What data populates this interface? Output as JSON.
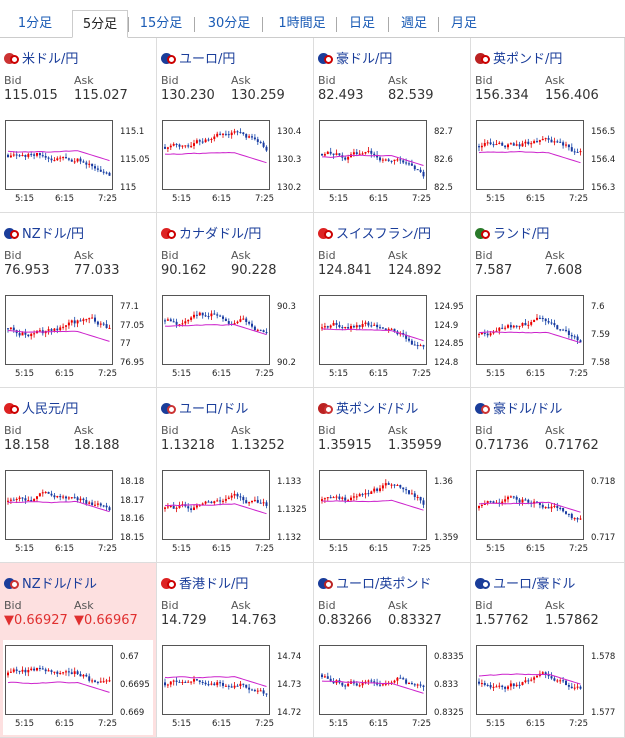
{
  "tabs": [
    {
      "label": "1分足",
      "active": false
    },
    {
      "label": "5分足",
      "active": true
    },
    {
      "label": "15分足",
      "active": false
    },
    {
      "label": "30分足",
      "active": false
    },
    {
      "label": "1時間足",
      "active": false
    },
    {
      "label": "日足",
      "active": false
    },
    {
      "label": "週足",
      "active": false
    },
    {
      "label": "月足",
      "active": false
    }
  ],
  "bid_label": "Bid",
  "ask_label": "Ask",
  "x_ticks": [
    "5:15",
    "6:15",
    "7:25"
  ],
  "pairs": [
    {
      "name": "米ドル/円",
      "bid": "115.015",
      "ask": "115.027",
      "flag": [
        "#c33",
        "#c00"
      ],
      "y_ticks": [
        "115.1",
        "115.05",
        "115"
      ],
      "down": false
    },
    {
      "name": "ユーロ/円",
      "bid": "130.230",
      "ask": "130.259",
      "flag": [
        "#1a3d9a",
        "#c00"
      ],
      "y_ticks": [
        "130.4",
        "130.3",
        "130.2"
      ],
      "down": false
    },
    {
      "name": "豪ドル/円",
      "bid": "82.493",
      "ask": "82.539",
      "flag": [
        "#1a3d9a",
        "#c00"
      ],
      "y_ticks": [
        "82.7",
        "82.6",
        "82.5"
      ],
      "down": false
    },
    {
      "name": "英ポンド/円",
      "bid": "156.334",
      "ask": "156.406",
      "flag": [
        "#b22",
        "#c00"
      ],
      "y_ticks": [
        "156.5",
        "156.4",
        "156.3"
      ],
      "down": false
    },
    {
      "name": "NZドル/円",
      "bid": "76.953",
      "ask": "77.033",
      "flag": [
        "#1a3d9a",
        "#c00"
      ],
      "y_ticks": [
        "77.1",
        "77.05",
        "77",
        "76.95"
      ],
      "down": false
    },
    {
      "name": "カナダドル/円",
      "bid": "90.162",
      "ask": "90.228",
      "flag": [
        "#d22",
        "#c00"
      ],
      "y_ticks": [
        "90.3",
        "90.2"
      ],
      "down": false
    },
    {
      "name": "スイスフラン/円",
      "bid": "124.841",
      "ask": "124.892",
      "flag": [
        "#d22",
        "#c00"
      ],
      "y_ticks": [
        "124.95",
        "124.9",
        "124.85",
        "124.8"
      ],
      "down": false
    },
    {
      "name": "ランド/円",
      "bid": "7.587",
      "ask": "7.608",
      "flag": [
        "#2a7a2a",
        "#c00"
      ],
      "y_ticks": [
        "7.6",
        "7.59",
        "7.58"
      ],
      "down": false
    },
    {
      "name": "人民元/円",
      "bid": "18.158",
      "ask": "18.188",
      "flag": [
        "#d22",
        "#c00"
      ],
      "y_ticks": [
        "18.18",
        "18.17",
        "18.16",
        "18.15"
      ],
      "down": false
    },
    {
      "name": "ユーロ/ドル",
      "bid": "1.13218",
      "ask": "1.13252",
      "flag": [
        "#1a3d9a",
        "#c33"
      ],
      "y_ticks": [
        "1.133",
        "1.1325",
        "1.132"
      ],
      "down": false
    },
    {
      "name": "英ポンド/ドル",
      "bid": "1.35915",
      "ask": "1.35959",
      "flag": [
        "#b22",
        "#c33"
      ],
      "y_ticks": [
        "1.36",
        "1.359"
      ],
      "down": false
    },
    {
      "name": "豪ドル/ドル",
      "bid": "0.71736",
      "ask": "0.71762",
      "flag": [
        "#1a3d9a",
        "#c33"
      ],
      "y_ticks": [
        "0.718",
        "0.717"
      ],
      "down": false
    },
    {
      "name": "NZドル/ドル",
      "bid": "▼0.66927",
      "ask": "▼0.66967",
      "flag": [
        "#1a3d9a",
        "#c33"
      ],
      "y_ticks": [
        "0.67",
        "0.6695",
        "0.669"
      ],
      "down": true
    },
    {
      "name": "香港ドル/円",
      "bid": "14.729",
      "ask": "14.763",
      "flag": [
        "#d22",
        "#c00"
      ],
      "y_ticks": [
        "14.74",
        "14.73",
        "14.72"
      ],
      "down": false
    },
    {
      "name": "ユーロ/英ポンド",
      "bid": "0.83266",
      "ask": "0.83327",
      "flag": [
        "#1a3d9a",
        "#b22"
      ],
      "y_ticks": [
        "0.8335",
        "0.833",
        "0.8325"
      ],
      "down": false
    },
    {
      "name": "ユーロ/豪ドル",
      "bid": "1.57762",
      "ask": "1.57862",
      "flag": [
        "#1a3d9a",
        "#1a3d9a"
      ],
      "y_ticks": [
        "1.578",
        "1.577"
      ],
      "down": false
    }
  ]
}
